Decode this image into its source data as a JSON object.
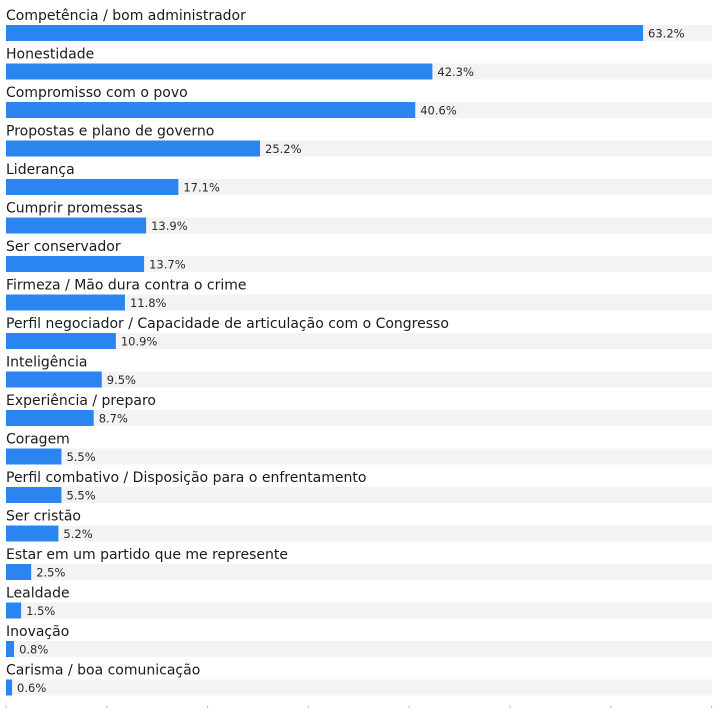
{
  "chart_data": {
    "type": "bar",
    "orientation": "horizontal",
    "xlim": [
      0,
      70
    ],
    "x_ticks": [
      0,
      10,
      20,
      30,
      40,
      50,
      60,
      70
    ],
    "grid": false,
    "value_suffix": "%",
    "categories": [
      "Competência / bom administrador",
      "Honestidade",
      "Compromisso com o povo",
      "Propostas e plano de governo",
      "Liderança",
      "Cumprir promessas",
      "Ser conservador",
      "Firmeza / Mão dura contra o crime",
      "Perfil negociador / Capacidade de articulação com o Congresso",
      "Inteligência",
      "Experiência / preparo",
      "Coragem",
      "Perfil combativo / Disposição para o enfrentamento",
      "Ser cristão",
      "Estar em um partido que me represente",
      "Lealdade",
      "Inovação",
      "Carisma / boa comunicação"
    ],
    "values": [
      63.2,
      42.3,
      40.6,
      25.2,
      17.1,
      13.9,
      13.7,
      11.8,
      10.9,
      9.5,
      8.7,
      5.5,
      5.5,
      5.2,
      2.5,
      1.5,
      0.8,
      0.6
    ],
    "value_labels": [
      "63.2%",
      "42.3%",
      "40.6%",
      "25.2%",
      "17.1%",
      "13.9%",
      "13.7%",
      "11.8%",
      "10.9%",
      "9.5%",
      "8.7%",
      "5.5%",
      "5.5%",
      "5.2%",
      "2.5%",
      "1.5%",
      "0.8%",
      "0.6%"
    ],
    "colors": {
      "bar": "#2b85f0",
      "track": "#f3f3f3",
      "text": "#1a1a1a"
    }
  }
}
